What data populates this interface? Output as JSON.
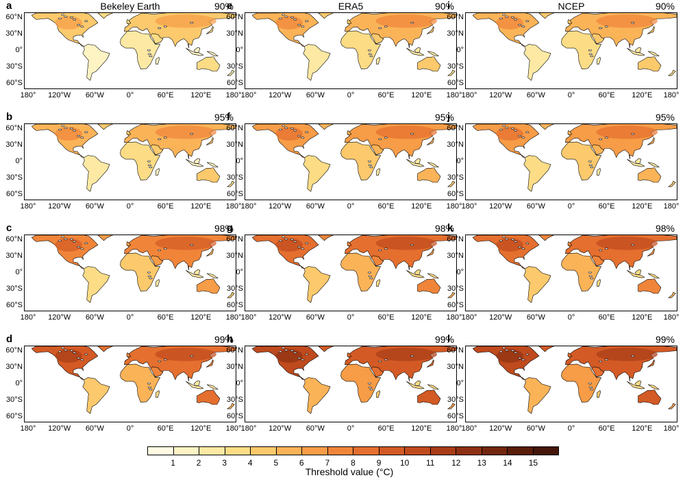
{
  "columns": [
    {
      "dataset": "Bekeley Earth",
      "letters": [
        "a",
        "b",
        "c",
        "d"
      ]
    },
    {
      "dataset": "ERA5",
      "letters": [
        "e",
        "f",
        "g",
        "h"
      ]
    },
    {
      "dataset": "NCEP",
      "letters": [
        "i",
        "j",
        "k",
        "l"
      ]
    }
  ],
  "rows": [
    {
      "percentile": "90%",
      "level": 0
    },
    {
      "percentile": "95%",
      "level": 1
    },
    {
      "percentile": "98%",
      "level": 2
    },
    {
      "percentile": "99%",
      "level": 3
    }
  ],
  "lat_labels": [
    "60°N",
    "30°N",
    "0°",
    "30°S",
    "60°S"
  ],
  "lon_labels": [
    "180°",
    "120°W",
    "60°W",
    "0°",
    "60°E",
    "120°E",
    "180°"
  ],
  "colorbar": {
    "title": "Threshold value (°C)",
    "ticks": [
      "1",
      "2",
      "3",
      "4",
      "5",
      "6",
      "7",
      "8",
      "9",
      "10",
      "11",
      "12",
      "13",
      "14",
      "15"
    ],
    "colors": [
      "#fffbe2",
      "#fef3c3",
      "#fde9a3",
      "#fddc86",
      "#fcc96c",
      "#fbb358",
      "#f79c47",
      "#f0853a",
      "#e46f2f",
      "#d35a25",
      "#bf4a1d",
      "#a83c16",
      "#8e3012",
      "#73260e",
      "#5a1d0a",
      "#44150a"
    ]
  }
}
